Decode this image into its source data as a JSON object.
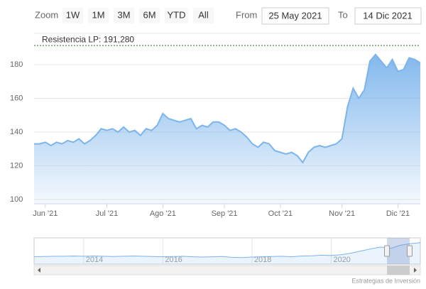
{
  "range_selector": {
    "zoom_label": "Zoom",
    "buttons": [
      "1W",
      "1M",
      "3M",
      "6M",
      "YTD",
      "All"
    ],
    "from_label": "From",
    "from": "25 May 2021",
    "to_label": "To",
    "to": "14 Dic 2021"
  },
  "credits": "Estrategias de Inversión",
  "chart_data": {
    "type": "area",
    "color": "#7cb5ec",
    "categories": [
      null,
      null,
      "Jun '21",
      null,
      null,
      null,
      null,
      null,
      null,
      null,
      null,
      null,
      null,
      "Jul '21",
      null,
      null,
      null,
      null,
      null,
      null,
      null,
      null,
      null,
      "Ago '21",
      null,
      null,
      null,
      null,
      null,
      null,
      null,
      null,
      null,
      null,
      "Sep '21",
      null,
      null,
      null,
      null,
      null,
      null,
      null,
      null,
      null,
      "Oct '21",
      null,
      null,
      null,
      null,
      null,
      null,
      null,
      null,
      null,
      null,
      "Nov '21",
      null,
      null,
      null,
      null,
      null,
      null,
      null,
      null,
      null,
      "Dic '21",
      null,
      null,
      null,
      null
    ],
    "values": [
      133,
      133,
      134,
      132,
      134,
      133,
      135,
      134,
      136,
      133,
      135,
      138,
      142,
      141,
      142,
      140,
      143,
      140,
      141,
      138,
      142,
      141,
      144,
      151,
      148,
      147,
      146,
      147,
      148,
      142,
      144,
      143,
      146,
      146,
      144,
      141,
      142,
      140,
      137,
      133,
      131,
      134,
      133,
      129,
      128,
      127,
      128,
      126,
      122,
      128,
      131,
      132,
      131,
      132,
      133,
      136,
      155,
      166,
      160,
      165,
      182,
      186,
      182,
      178,
      183,
      176,
      177,
      184,
      183,
      181
    ],
    "ylim": [
      97.5,
      198.5
    ],
    "yticks": [
      100,
      120,
      140,
      160,
      180
    ],
    "grid": true,
    "plot_line": {
      "value": 191.28,
      "label": "Resistencia LP: 191,280",
      "color": "#2e6b2e"
    },
    "navigator": {
      "categories": [
        null,
        null,
        null,
        null,
        null,
        "2014",
        null,
        null,
        null,
        null,
        null,
        null,
        null,
        "2016",
        null,
        null,
        null,
        null,
        null,
        null,
        null,
        null,
        "2018",
        null,
        null,
        null,
        null,
        null,
        null,
        null,
        "2020",
        null,
        null,
        null,
        null,
        null,
        null,
        null,
        null,
        null
      ],
      "values": [
        128,
        129,
        130,
        130,
        131,
        130,
        131,
        130,
        129,
        130,
        131,
        130,
        129,
        128,
        129,
        130,
        128,
        127,
        128,
        129,
        126,
        125,
        127,
        128,
        129,
        130,
        128,
        131,
        132,
        134,
        133,
        136,
        142,
        150,
        158,
        165,
        160,
        172,
        178,
        182
      ],
      "ylim": [
        100,
        200
      ]
    }
  }
}
